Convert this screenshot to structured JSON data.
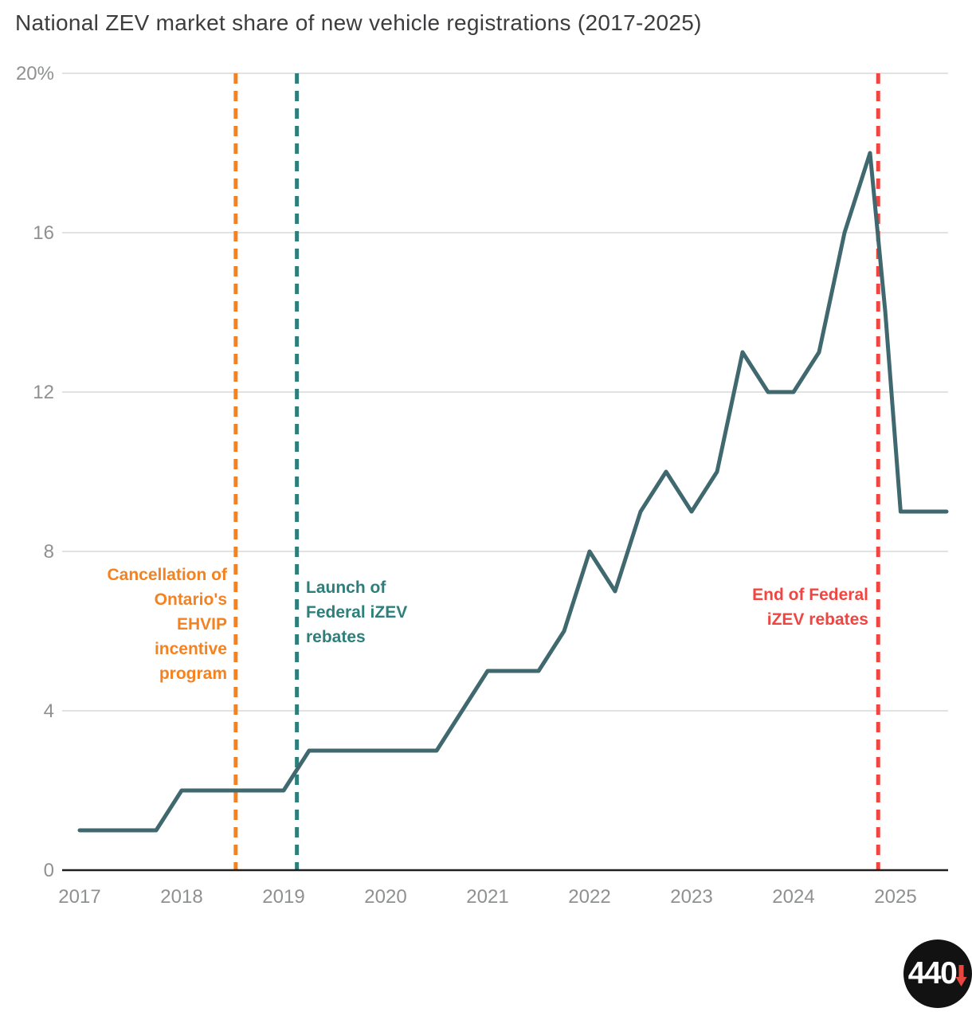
{
  "chart_data": {
    "type": "line",
    "title": "National ZEV market share of new vehicle registrations (2017-2025)",
    "series_name": "National ZEV market share (%)",
    "x": [
      2017.0,
      2017.25,
      2017.5,
      2017.75,
      2018.0,
      2018.25,
      2018.5,
      2018.75,
      2019.0,
      2019.25,
      2019.5,
      2019.75,
      2020.0,
      2020.25,
      2020.5,
      2020.75,
      2021.0,
      2021.25,
      2021.5,
      2021.75,
      2022.0,
      2022.25,
      2022.5,
      2022.75,
      2023.0,
      2023.25,
      2023.5,
      2023.75,
      2024.0,
      2024.25,
      2024.5,
      2024.75,
      2024.9,
      2025.05,
      2025.25,
      2025.5
    ],
    "values": [
      1,
      1,
      1,
      1,
      2,
      2,
      2,
      2,
      2,
      3,
      3,
      3,
      3,
      3,
      3,
      4,
      5,
      5,
      5,
      6,
      8,
      7,
      9,
      10,
      9,
      10,
      13,
      12,
      12,
      13,
      16,
      18,
      14,
      9,
      9,
      9
    ],
    "xlim": [
      2016.85,
      2025.55
    ],
    "ylim": [
      0,
      20
    ],
    "x_ticks": [
      2017,
      2018,
      2019,
      2020,
      2021,
      2022,
      2023,
      2024,
      2025
    ],
    "y_ticks": [
      0,
      4,
      8,
      12,
      16,
      20
    ],
    "y_tick_labels": [
      "0",
      "4",
      "8",
      "12",
      "16",
      "20%"
    ],
    "grid": true,
    "legend": "none",
    "line_color": "#40686f",
    "axis_color": "#1f1f1f",
    "grid_color": "#d8d8d8",
    "tick_label_color": "#8f9092",
    "annotations": [
      {
        "x": 2018.53,
        "side": "left",
        "color": "#f58220",
        "label": "Cancellation of\nOntario's\nEHVIP\nincentive\nprogram"
      },
      {
        "x": 2019.13,
        "side": "right",
        "color": "#2e7f7c",
        "label": "Launch of\nFederal iZEV\nrebates"
      },
      {
        "x": 2024.83,
        "side": "left",
        "color": "#f04540",
        "label": "End of Federal\niZEV rebates"
      }
    ]
  },
  "logo": {
    "text": "440",
    "arrow_color": "#e8473f"
  }
}
